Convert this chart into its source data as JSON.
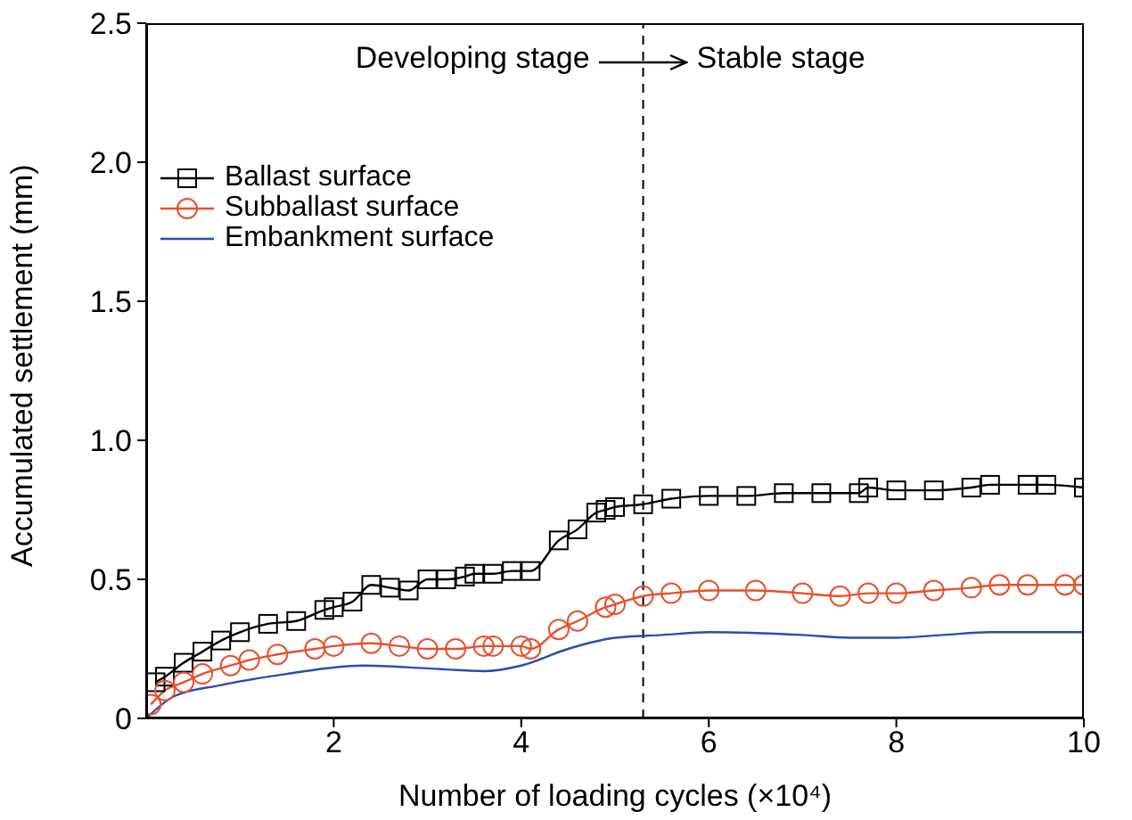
{
  "chart_data": {
    "type": "line",
    "xlabel": "Number of loading cycles (×10⁴)",
    "ylabel": "Accumulated settlement (mm)",
    "xlim": [
      0,
      10
    ],
    "xticks": [
      2,
      4,
      6,
      8,
      10
    ],
    "ylim": [
      0,
      2.5
    ],
    "yticks": [
      0,
      0.5,
      {
        "value": 1,
        "label": "1.0"
      },
      1.5,
      {
        "value": 2,
        "label": "2.0"
      },
      2.5
    ],
    "legend": "top left",
    "ref_lines": [
      {
        "axis": "x",
        "value": 5.3,
        "line_style": "dashed",
        "color": "#000000"
      }
    ],
    "annotations": [
      "Developing stage",
      "Stable stage"
    ],
    "series": [
      {
        "name": "Ballast surface",
        "color": "#000000",
        "marker": "square",
        "x": [
          0.1,
          0.2,
          0.4,
          0.6,
          0.8,
          1.0,
          1.3,
          1.6,
          1.9,
          2.0,
          2.2,
          2.4,
          2.6,
          2.8,
          3.0,
          3.2,
          3.4,
          3.5,
          3.7,
          3.9,
          4.1,
          4.4,
          4.6,
          4.8,
          4.9,
          5.0,
          5.3,
          5.6,
          6.0,
          6.4,
          6.8,
          7.2,
          7.6,
          7.7,
          8.0,
          8.4,
          8.8,
          9.0,
          9.4,
          9.6,
          10.0
        ],
        "values": [
          0.13,
          0.15,
          0.2,
          0.24,
          0.28,
          0.31,
          0.34,
          0.35,
          0.39,
          0.4,
          0.42,
          0.48,
          0.47,
          0.46,
          0.5,
          0.5,
          0.51,
          0.52,
          0.52,
          0.53,
          0.53,
          0.64,
          0.68,
          0.74,
          0.75,
          0.76,
          0.77,
          0.79,
          0.8,
          0.8,
          0.81,
          0.81,
          0.81,
          0.83,
          0.82,
          0.82,
          0.83,
          0.84,
          0.84,
          0.84,
          0.83
        ]
      },
      {
        "name": "Subballast surface",
        "color": "#e8502e",
        "marker": "circle",
        "x": [
          0.05,
          0.2,
          0.4,
          0.6,
          0.9,
          1.1,
          1.4,
          1.8,
          2.0,
          2.4,
          2.7,
          3.0,
          3.3,
          3.6,
          3.7,
          4.0,
          4.1,
          4.4,
          4.6,
          4.9,
          5.0,
          5.3,
          5.6,
          6.0,
          6.5,
          7.0,
          7.4,
          7.7,
          8.0,
          8.4,
          8.8,
          9.1,
          9.4,
          9.8,
          10.0
        ],
        "values": [
          0.05,
          0.1,
          0.13,
          0.16,
          0.19,
          0.21,
          0.23,
          0.25,
          0.26,
          0.27,
          0.26,
          0.25,
          0.25,
          0.26,
          0.26,
          0.26,
          0.25,
          0.32,
          0.35,
          0.4,
          0.41,
          0.44,
          0.45,
          0.46,
          0.46,
          0.45,
          0.44,
          0.45,
          0.45,
          0.46,
          0.47,
          0.48,
          0.48,
          0.48,
          0.48
        ]
      },
      {
        "name": "Embankment surface",
        "color": "#2a4db0",
        "marker": "none",
        "x": [
          0,
          0.3,
          0.8,
          1.5,
          2.3,
          3.0,
          3.6,
          4.0,
          4.5,
          5.0,
          5.5,
          6.0,
          7.0,
          7.5,
          8.0,
          8.5,
          9.0,
          10.0
        ],
        "values": [
          0,
          0.08,
          0.12,
          0.16,
          0.19,
          0.18,
          0.17,
          0.19,
          0.25,
          0.29,
          0.3,
          0.31,
          0.3,
          0.29,
          0.29,
          0.3,
          0.31,
          0.31
        ]
      }
    ]
  }
}
